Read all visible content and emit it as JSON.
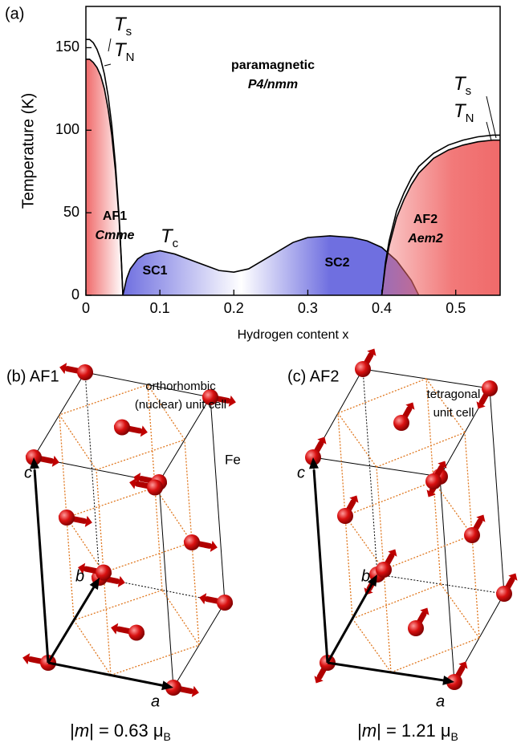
{
  "chart_data": {
    "type": "phase",
    "panel_label": "(a)",
    "xlabel": "Hydrogen content x",
    "ylabel": "Temperature (K)",
    "xlim": [
      0,
      0.56
    ],
    "ylim": [
      0,
      175
    ],
    "xticks": [
      0,
      0.1,
      0.2,
      0.3,
      0.4,
      0.5
    ],
    "yticks": [
      0,
      50,
      100,
      150
    ],
    "series": [
      {
        "color": "#f06a6a",
        "fill": true,
        "x": [
          0,
          0.005,
          0.01,
          0.015,
          0.02,
          0.025,
          0.03,
          0.035,
          0.04,
          0.045,
          0.048,
          0.05
        ],
        "values": [
          143,
          143,
          141,
          138,
          133,
          125,
          113,
          97,
          75,
          45,
          20,
          0
        ]
      },
      {
        "color": "#000000",
        "fill": false,
        "x": [
          0,
          0.005,
          0.01,
          0.015,
          0.02,
          0.025,
          0.03,
          0.035,
          0.04,
          0.045,
          0.048,
          0.05
        ],
        "values": [
          155,
          155,
          153,
          149,
          143,
          134,
          121,
          103,
          79,
          47,
          21,
          0
        ]
      },
      {
        "color": "#6f6fe0",
        "fill": true,
        "x": [
          0.05,
          0.055,
          0.06,
          0.07,
          0.08,
          0.1,
          0.12,
          0.15,
          0.18,
          0.2,
          0.22,
          0.25,
          0.28,
          0.3,
          0.33,
          0.36,
          0.38,
          0.4,
          0.42,
          0.44,
          0.45
        ],
        "values": [
          0,
          10,
          16,
          22,
          25,
          27,
          25,
          20,
          15,
          14,
          16,
          24,
          32,
          35,
          36,
          35,
          33,
          29,
          21,
          9,
          0
        ]
      },
      {
        "color": "#f06a6a",
        "fill": true,
        "x": [
          0.4,
          0.405,
          0.41,
          0.42,
          0.43,
          0.44,
          0.45,
          0.47,
          0.49,
          0.51,
          0.53,
          0.55,
          0.56
        ],
        "values": [
          0,
          18,
          30,
          47,
          58,
          67,
          74,
          83,
          88,
          91,
          93,
          94,
          94
        ]
      },
      {
        "color": "#000000",
        "fill": false,
        "x": [
          0.4,
          0.405,
          0.41,
          0.42,
          0.43,
          0.44,
          0.45,
          0.47,
          0.49,
          0.51,
          0.53,
          0.55,
          0.56
        ],
        "values": [
          0,
          20,
          33,
          51,
          62,
          71,
          78,
          86,
          91,
          94,
          96,
          97,
          97
        ]
      }
    ],
    "annotations": [
      "paramagnetic",
      "P4/nmm",
      "AF1",
      "Cmme",
      "SC1",
      "SC2",
      "AF2",
      "Aem2"
    ],
    "temp_labels": [
      [
        "T",
        "s"
      ],
      [
        "T",
        "N"
      ],
      [
        "T",
        "c"
      ],
      [
        "T",
        "s"
      ],
      [
        "T",
        "N"
      ]
    ]
  },
  "panels": [
    {
      "label": "(b) AF1",
      "cell_note": [
        "orthorhombic",
        "(nuclear) unit cell"
      ],
      "atom": "Fe",
      "axes": [
        "a",
        "b",
        "c"
      ],
      "moment": [
        "|",
        "m",
        "| = 0.63 μ",
        "B"
      ]
    },
    {
      "label": "(c) AF2",
      "cell_note": [
        "tetragonal",
        "unit cell"
      ],
      "axes": [
        "a",
        "b",
        "c"
      ],
      "moment": [
        "|",
        "m",
        "| = 1.21 μ",
        "B"
      ]
    }
  ]
}
